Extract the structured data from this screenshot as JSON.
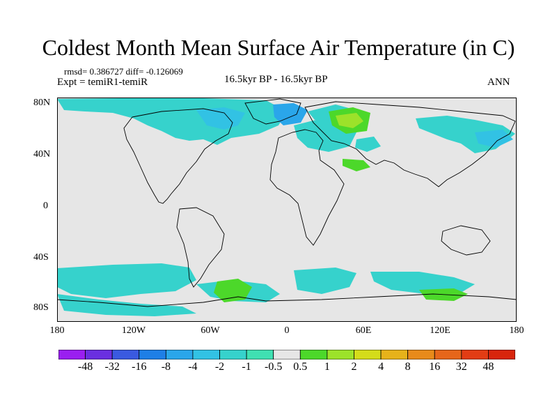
{
  "title": "Coldest Month Mean Surface Air Temperature (in C)",
  "stats": "rmsd= 0.386727 diff= -0.126069",
  "experiment": "Expt = temiR1-temiR",
  "period": "16.5kyr BP - 16.5kyr BP",
  "season": "ANN",
  "y_ticks": [
    "80N",
    "40N",
    "0",
    "40S",
    "80S"
  ],
  "x_ticks": [
    "180",
    "120W",
    "60W",
    "0",
    "60E",
    "120E",
    "180"
  ],
  "colorbar": {
    "labels": [
      "-48",
      "-32",
      "-16",
      "-8",
      "-4",
      "-2",
      "-1",
      "-0.5",
      "0.5",
      "1",
      "2",
      "4",
      "8",
      "16",
      "32",
      "48"
    ],
    "colors": [
      "#9a1ff0",
      "#6a2fe0",
      "#3a5ae0",
      "#1e7fe6",
      "#2aa6ea",
      "#32c2e4",
      "#36d2cc",
      "#3fe0b2",
      "#e6e6e6",
      "#4cd82a",
      "#9ce22a",
      "#d4dc1a",
      "#e6b21a",
      "#e88a1a",
      "#e6661a",
      "#e23c14",
      "#d8250c"
    ]
  },
  "colors": {
    "land_neutral": "#e6e6e6",
    "cool_light": "#36d2cc",
    "cool": "#32c2e4",
    "cooler": "#2aa6ea",
    "warm": "#4cd82a",
    "warmer": "#9ce22a"
  }
}
